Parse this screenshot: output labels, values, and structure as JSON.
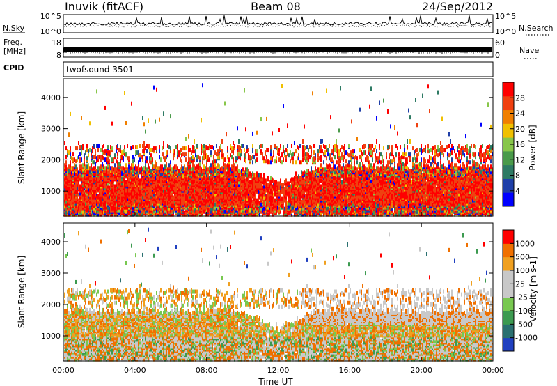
{
  "header": {
    "station": "Inuvik (fitACF)",
    "beam": "Beam 08",
    "date": "24/Sep/2012"
  },
  "noise_panel": {
    "left_label": "N.Sky",
    "right_label": "N.Search",
    "left_ticks": [
      "10^5",
      "10^0"
    ],
    "right_ticks": [
      "10^5",
      "10^0"
    ]
  },
  "freq_panel": {
    "left_label_line1": "Freq.",
    "left_label_line2": "[MHz]",
    "right_label": "Nave",
    "left_ticks": [
      "18",
      "8"
    ],
    "right_ticks": [
      "60",
      "0"
    ]
  },
  "cpid_panel": {
    "label": "CPID",
    "program": "twofsound 3501"
  },
  "colors": {
    "trace": "#000000",
    "power_scale": [
      "#0000ff",
      "#1f3fa8",
      "#2e7a64",
      "#4a9a4a",
      "#88c64a",
      "#f0c000",
      "#f07f00",
      "#f04010",
      "#ff0000"
    ],
    "velocity_scale": [
      "#2040c0",
      "#2a7070",
      "#3c9a50",
      "#78c850",
      "#c8c8c8",
      "#c8c8c8",
      "#f0a020",
      "#f07000",
      "#ff0000"
    ]
  },
  "chart_data": [
    {
      "type": "heatmap",
      "name": "power",
      "ylabel": "Slant Range [km]",
      "yticks": [
        1000,
        2000,
        3000,
        4000
      ],
      "ylim": [
        200,
        4600
      ],
      "colorbar": {
        "label": "Power [dB]",
        "ticks": [
          "28",
          "24",
          "20",
          "16",
          "12",
          "8",
          "4"
        ],
        "range": [
          0,
          30
        ]
      }
    },
    {
      "type": "heatmap",
      "name": "velocity",
      "xlabel": "Time UT",
      "xticks": [
        "00:00",
        "04:00",
        "08:00",
        "12:00",
        "16:00",
        "20:00",
        "00:00"
      ],
      "ylabel": "Slant Range [km]",
      "yticks": [
        1000,
        2000,
        3000,
        4000
      ],
      "ylim": [
        200,
        4600
      ],
      "colorbar": {
        "label": "Velocity [m s-1]",
        "ticks": [
          "1000",
          "500",
          "100",
          "25",
          "-25",
          "-100",
          "-500",
          "-1000"
        ]
      }
    }
  ]
}
